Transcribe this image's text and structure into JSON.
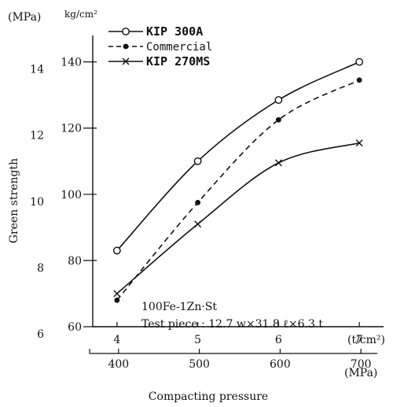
{
  "chart_data": {
    "type": "line",
    "title": "",
    "xlabel": "Compacting pressure",
    "ylabel": "Green strength",
    "x": [
      4,
      5,
      6,
      7
    ],
    "x_unit_top": "(t/cm²)",
    "x_ticks_top": [
      "4",
      "5",
      "6",
      "7"
    ],
    "x_unit_bottom": "(MPa)",
    "x_ticks_bottom": [
      "400",
      "500",
      "600",
      "700"
    ],
    "y_unit_left": "(MPa)",
    "y_ticks_left": [
      "6",
      "8",
      "10",
      "12",
      "14"
    ],
    "y_unit_right": "kg/cm²",
    "y_ticks_right": [
      "60",
      "80",
      "100",
      "120",
      "140"
    ],
    "xlim": [
      3.7,
      7.3
    ],
    "ylim": [
      60,
      148
    ],
    "grid": false,
    "legend_position": "top-left",
    "series": [
      {
        "name": "KIP 300A",
        "marker": "open-circle",
        "line": "solid",
        "values": [
          83,
          110,
          128.5,
          140
        ]
      },
      {
        "name": "Commercial",
        "marker": "filled-dot",
        "line": "dashed",
        "values": [
          68,
          97.5,
          122.5,
          134.5
        ]
      },
      {
        "name": "KIP 270MS",
        "marker": "cross",
        "line": "solid",
        "values": [
          70,
          91,
          109.5,
          115.5
        ]
      }
    ],
    "annotations": [
      "100Fe-1Zn·St",
      "Test piece : 12.7 w×31.8 ℓ×6.3 t"
    ]
  }
}
